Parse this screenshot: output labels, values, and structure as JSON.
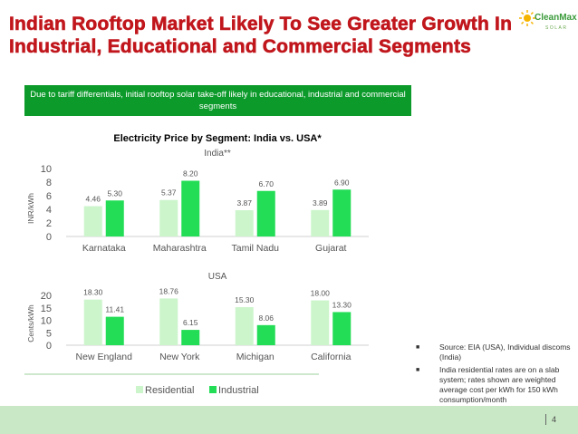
{
  "slide": {
    "title": "Indian Rooftop Market Likely To See Greater Growth In Industrial, Educational and Commercial Segments",
    "banner": "Due to tariff differentials, initial rooftop solar take-off likely in educational, industrial and commercial segments",
    "page_number": "4"
  },
  "logo": {
    "name": "CleanMax",
    "sub": "SOLAR",
    "icon": "sun-icon"
  },
  "notes": [
    "Source: EIA (USA), Individual discoms (India)",
    "India residential rates are on a slab system; rates shown are weighted average cost per kWh for 150 kWh consumption/month"
  ],
  "colors": {
    "residential": "#ccf5cc",
    "industrial": "#22dd55",
    "title": "#c0161c",
    "banner": "#0c9a2a"
  },
  "chart_data": [
    {
      "type": "bar",
      "title": "Electricity Price by Segment: India vs. USA*",
      "subtitle": "India**",
      "ylabel": "INR/kWh",
      "ylim": [
        0,
        10
      ],
      "yticks": [
        0,
        2,
        4,
        6,
        8,
        10
      ],
      "categories": [
        "Karnataka",
        "Maharashtra",
        "Tamil Nadu",
        "Gujarat"
      ],
      "series": [
        {
          "name": "Residential",
          "values": [
            4.46,
            5.37,
            3.87,
            3.89
          ]
        },
        {
          "name": "Industrial",
          "values": [
            5.3,
            8.2,
            6.7,
            6.9
          ]
        }
      ]
    },
    {
      "type": "bar",
      "subtitle": "USA",
      "ylabel": "Cents/kWh",
      "ylim": [
        0,
        20
      ],
      "yticks": [
        0,
        5,
        10,
        15,
        20
      ],
      "categories": [
        "New England",
        "New York",
        "Michigan",
        "California"
      ],
      "series": [
        {
          "name": "Residential",
          "values": [
            18.3,
            18.76,
            15.3,
            18.0
          ]
        },
        {
          "name": "Industrial",
          "values": [
            11.41,
            6.15,
            8.06,
            13.3
          ]
        }
      ]
    }
  ],
  "legend": [
    "Residential",
    "Industrial"
  ]
}
